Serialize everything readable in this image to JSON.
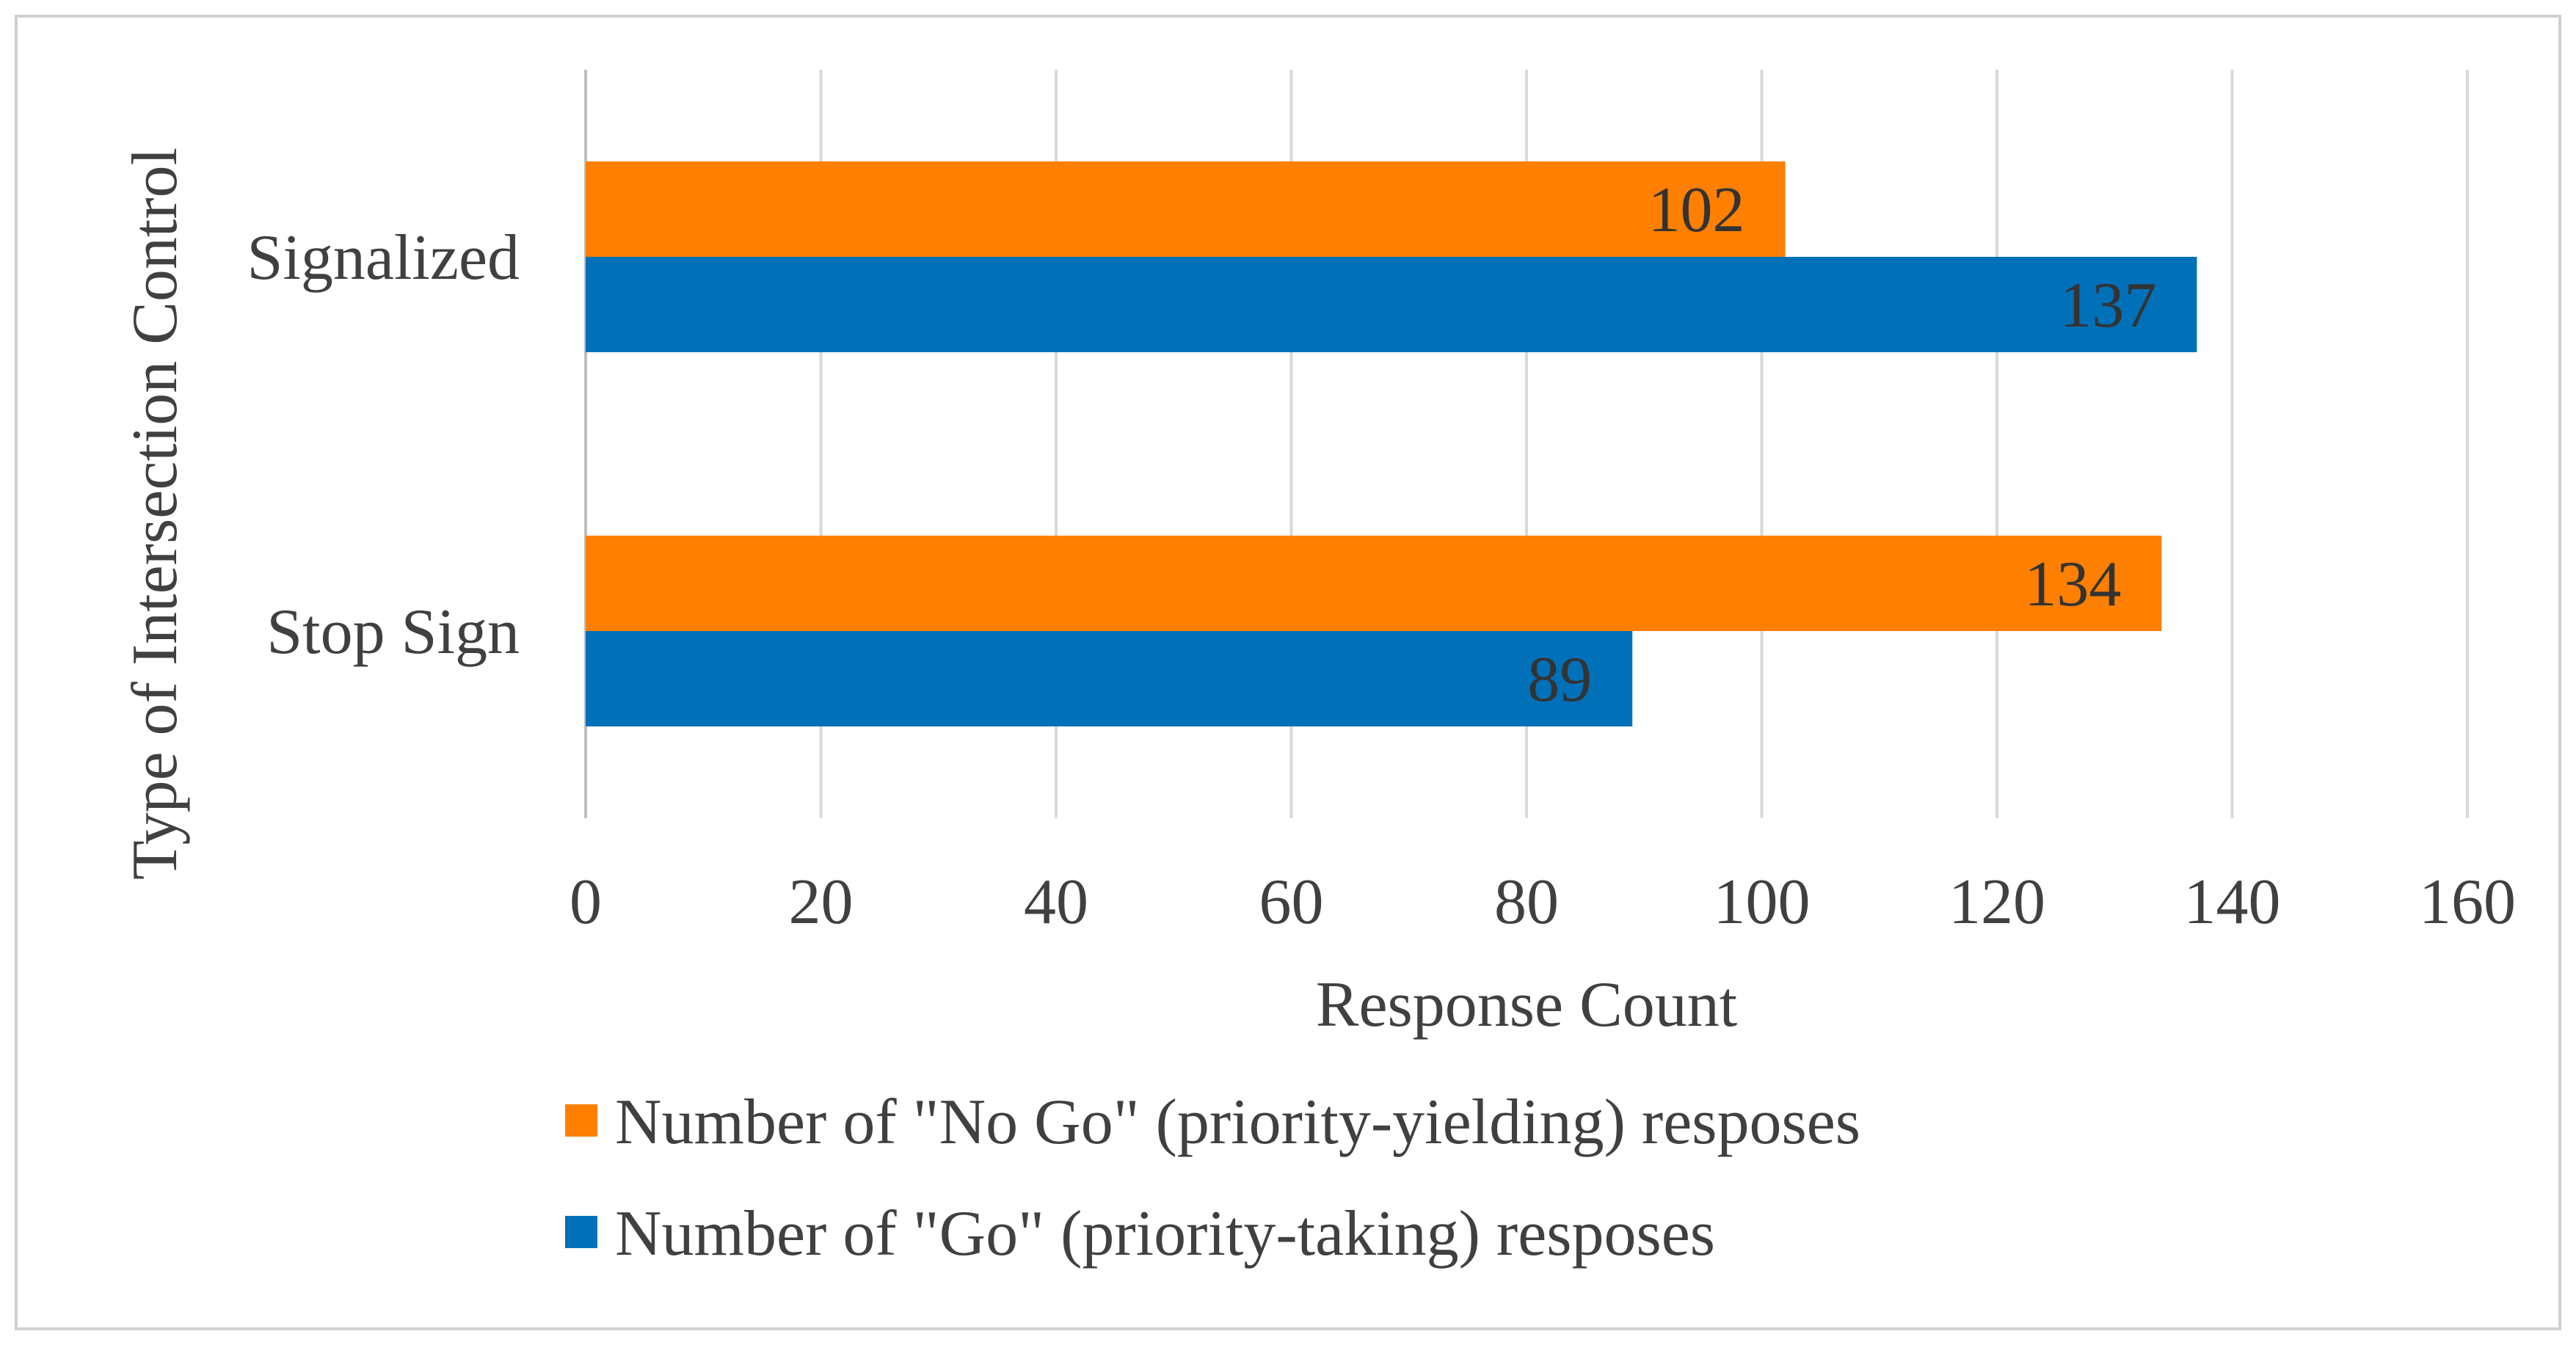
{
  "chart_data": {
    "type": "bar",
    "orientation": "horizontal",
    "title": "",
    "xlabel": "Response Count",
    "ylabel": "Type of Intersection Control",
    "categories": [
      "Signalized",
      "Stop Sign"
    ],
    "xlim": [
      0,
      160
    ],
    "xticks": [
      0,
      20,
      40,
      60,
      80,
      100,
      120,
      140,
      160
    ],
    "grid": true,
    "legend_position": "bottom",
    "series": [
      {
        "name": "Number of \"No Go\" (priority-yielding) resposes",
        "color": "#FF7F00",
        "values": [
          102,
          134
        ]
      },
      {
        "name": "Number of \"Go\" (priority-taking) resposes",
        "color": "#0070B8",
        "values": [
          137,
          89
        ]
      }
    ],
    "colors": {
      "grid": "#D9D9D9",
      "axis": "#BFBFBF",
      "text": "#404040",
      "border": "#D0D0D0"
    }
  }
}
